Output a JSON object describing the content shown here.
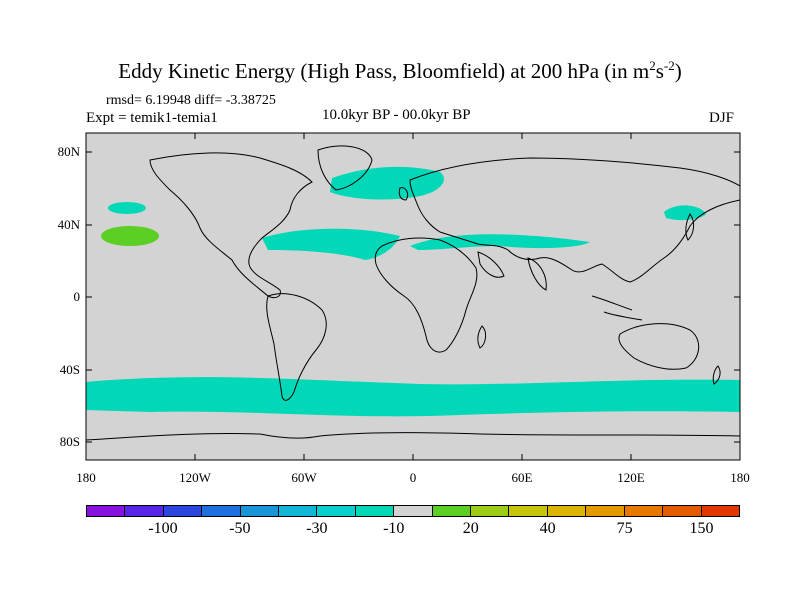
{
  "title": {
    "main": "Eddy Kinetic Energy (High Pass, Bloomfield) at 200 hPa (in m",
    "sup1": "2",
    "mid": "s",
    "sup2": "-2",
    "end": ")"
  },
  "stats": "rmsd= 6.19948 diff= -3.38725",
  "experiment": "Expt = temik1-temia1",
  "period": "10.0kyr BP - 00.0kyr BP",
  "season": "DJF",
  "map": {
    "land_color": "#d3d3d3",
    "anomaly_color_negative": "#00d8b8",
    "anomaly_color_positive": "#5ccf25",
    "lat_labels": [
      "80N",
      "40N",
      "0",
      "40S",
      "80S"
    ],
    "lon_labels": [
      "180",
      "120W",
      "60W",
      "0",
      "60E",
      "120E",
      "180"
    ]
  },
  "colorbar": {
    "colors": [
      "#8a12e0",
      "#5826e6",
      "#2d46e0",
      "#1e70dc",
      "#1a96d8",
      "#12b6d6",
      "#0acfcf",
      "#00d8b8",
      "#d3d3d3",
      "#5ccf25",
      "#9ccc15",
      "#c8c40b",
      "#ddb400",
      "#e29a00",
      "#e67800",
      "#e45a00",
      "#e03800"
    ],
    "labels": [
      "-100",
      "-50",
      "-30",
      "-10",
      "20",
      "40",
      "75",
      "150"
    ]
  }
}
